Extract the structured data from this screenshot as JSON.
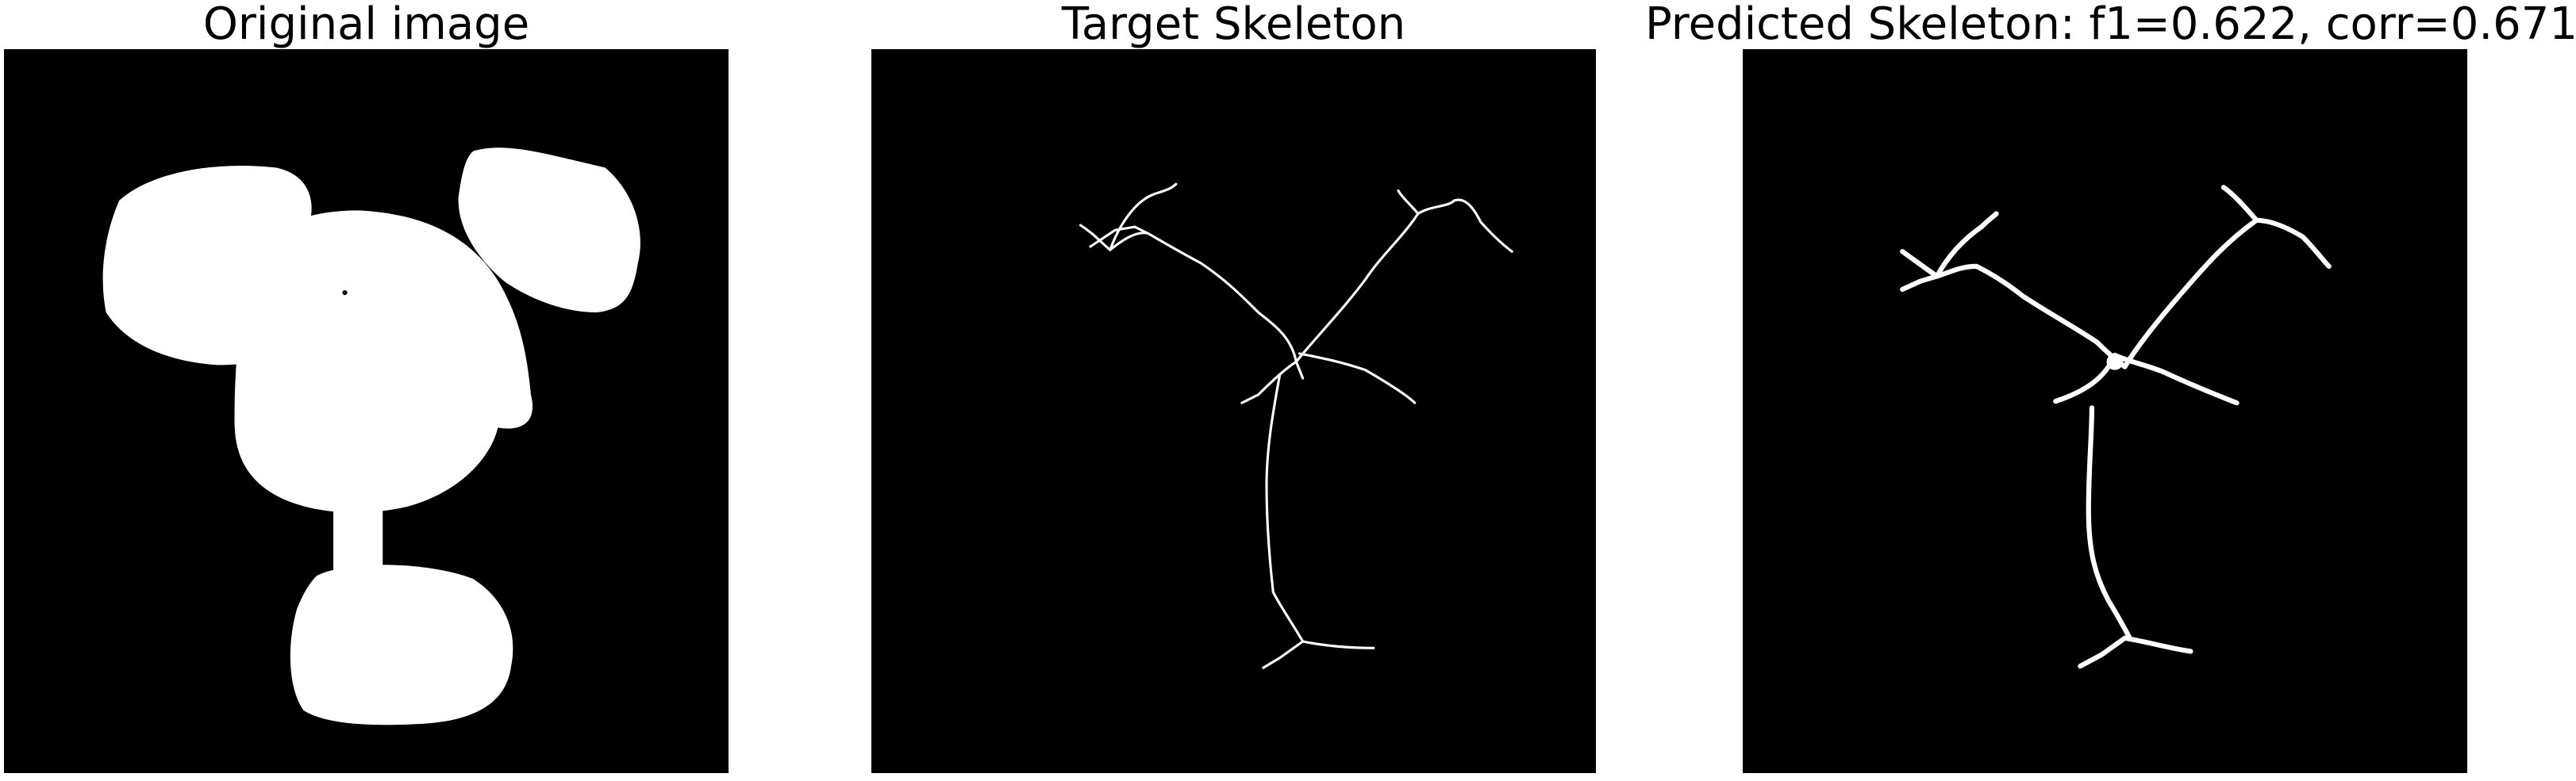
{
  "panels": [
    {
      "title": "Original image"
    },
    {
      "title": "Target Skeleton"
    },
    {
      "title": "Predicted Skeleton: f1=0.622, corr=0.671"
    }
  ],
  "colors": {
    "background": "#000000",
    "foreground": "#ffffff",
    "page": "#ffffff"
  }
}
